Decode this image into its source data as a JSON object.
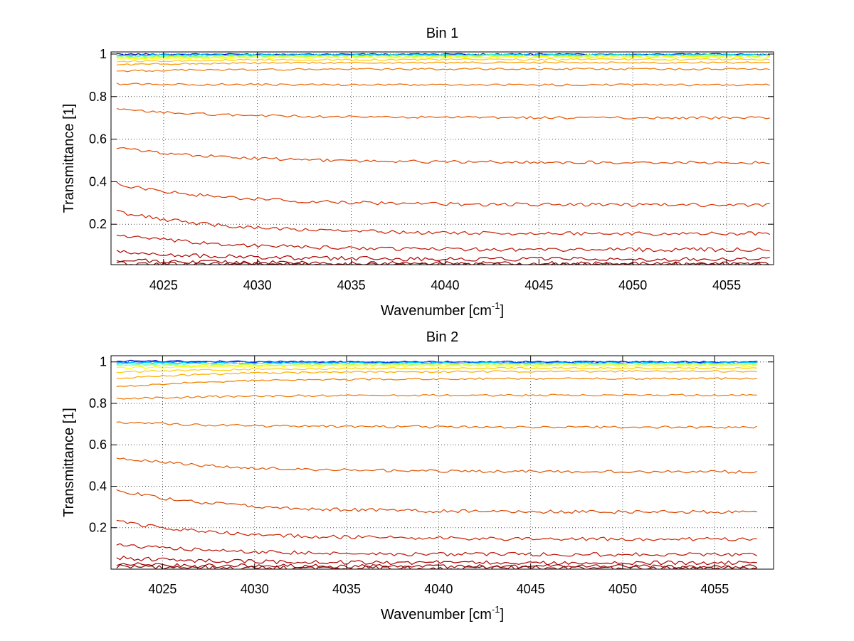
{
  "chart_data": [
    {
      "type": "line",
      "title": "Bin 1",
      "xlabel": "Wavenumber [cm",
      "xlabel_sup": "-1",
      "xlabel_end": "]",
      "ylabel": "Transmittance [1]",
      "xlim": [
        4022.2,
        4057.5
      ],
      "ylim": [
        0.01,
        1.01
      ],
      "grid": true,
      "x_ticks": [
        4025,
        4030,
        4035,
        4040,
        4045,
        4050,
        4055
      ],
      "x_tick_labels": [
        "4025",
        "4030",
        "4035",
        "4040",
        "4045",
        "4050",
        "4055"
      ],
      "y_ticks": [
        0.2,
        0.4,
        0.6,
        0.8,
        1
      ],
      "y_tick_labels": [
        "0.2",
        "0.4",
        "0.6",
        "0.8",
        "1"
      ],
      "x_range": [
        4022.5,
        4057.3
      ],
      "series": [
        {
          "name": "s1",
          "color": "#0000bb",
          "start": 0.999,
          "end": 0.999
        },
        {
          "name": "s2",
          "color": "#00a8ff",
          "start": 0.995,
          "end": 0.997
        },
        {
          "name": "s3",
          "color": "#22e0e0",
          "start": 0.992,
          "end": 0.995
        },
        {
          "name": "s4",
          "color": "#7fff7f",
          "start": 0.988,
          "end": 0.993
        },
        {
          "name": "s5",
          "color": "#ccff33",
          "start": 0.983,
          "end": 0.99
        },
        {
          "name": "s6",
          "color": "#ffff00",
          "start": 0.975,
          "end": 0.985
        },
        {
          "name": "s7",
          "color": "#ffcc00",
          "start": 0.965,
          "end": 0.975
        },
        {
          "name": "s8",
          "color": "#ff9900",
          "start": 0.95,
          "end": 0.96
        },
        {
          "name": "s9",
          "color": "#ee7700",
          "start": 0.92,
          "end": 0.93
        },
        {
          "name": "s10",
          "color": "#ee6600",
          "start": 0.86,
          "end": 0.855
        },
        {
          "name": "s11",
          "color": "#e85500",
          "start": 0.74,
          "end": 0.7
        },
        {
          "name": "s12",
          "color": "#e04400",
          "start": 0.56,
          "end": 0.49
        },
        {
          "name": "s13",
          "color": "#d83300",
          "start": 0.39,
          "end": 0.29
        },
        {
          "name": "s14",
          "color": "#cc2200",
          "start": 0.26,
          "end": 0.155
        },
        {
          "name": "s15",
          "color": "#bb1100",
          "start": 0.15,
          "end": 0.08
        },
        {
          "name": "s16",
          "color": "#aa0000",
          "start": 0.07,
          "end": 0.035
        },
        {
          "name": "s17",
          "color": "#990000",
          "start": 0.03,
          "end": 0.015
        },
        {
          "name": "s18",
          "color": "#800000",
          "start": 0.015,
          "end": 0.01
        }
      ]
    },
    {
      "type": "line",
      "title": "Bin 2",
      "xlabel": "Wavenumber [cm",
      "xlabel_sup": "-1",
      "xlabel_end": "]",
      "ylabel": "Transmittance [1]",
      "xlim": [
        4022.2,
        4058.2
      ],
      "ylim": [
        0.0,
        1.03
      ],
      "grid": true,
      "x_ticks": [
        4025,
        4030,
        4035,
        4040,
        4045,
        4050,
        4055
      ],
      "x_tick_labels": [
        "4025",
        "4030",
        "4035",
        "4040",
        "4045",
        "4050",
        "4055"
      ],
      "y_ticks": [
        0.2,
        0.4,
        0.6,
        0.8,
        1
      ],
      "y_tick_labels": [
        "0.2",
        "0.4",
        "0.6",
        "0.8",
        "1"
      ],
      "x_range": [
        4022.5,
        4057.3
      ],
      "series": [
        {
          "name": "s1",
          "color": "#0000bb",
          "start": 1.005,
          "end": 1.0
        },
        {
          "name": "s2",
          "color": "#0066ff",
          "start": 1.0,
          "end": 0.998
        },
        {
          "name": "s3",
          "color": "#00ccff",
          "start": 0.995,
          "end": 0.995
        },
        {
          "name": "s4",
          "color": "#66ffcc",
          "start": 0.988,
          "end": 0.992
        },
        {
          "name": "s5",
          "color": "#ccff33",
          "start": 0.98,
          "end": 0.988
        },
        {
          "name": "s6",
          "color": "#ffff00",
          "start": 0.97,
          "end": 0.982
        },
        {
          "name": "s7",
          "color": "#ffcc00",
          "start": 0.95,
          "end": 0.97
        },
        {
          "name": "s8",
          "color": "#ffaa00",
          "start": 0.92,
          "end": 0.955
        },
        {
          "name": "s9",
          "color": "#f08000",
          "start": 0.88,
          "end": 0.92
        },
        {
          "name": "s10",
          "color": "#ee7700",
          "start": 0.82,
          "end": 0.84
        },
        {
          "name": "s11",
          "color": "#e86600",
          "start": 0.71,
          "end": 0.685
        },
        {
          "name": "s12",
          "color": "#e05500",
          "start": 0.54,
          "end": 0.47
        },
        {
          "name": "s13",
          "color": "#d84400",
          "start": 0.38,
          "end": 0.275
        },
        {
          "name": "s14",
          "color": "#cc2200",
          "start": 0.23,
          "end": 0.145
        },
        {
          "name": "s15",
          "color": "#bb1100",
          "start": 0.12,
          "end": 0.07
        },
        {
          "name": "s16",
          "color": "#aa0000",
          "start": 0.055,
          "end": 0.03
        },
        {
          "name": "s17",
          "color": "#990000",
          "start": 0.025,
          "end": 0.012
        },
        {
          "name": "s18",
          "color": "#800000",
          "start": 0.012,
          "end": 0.005
        }
      ]
    }
  ]
}
